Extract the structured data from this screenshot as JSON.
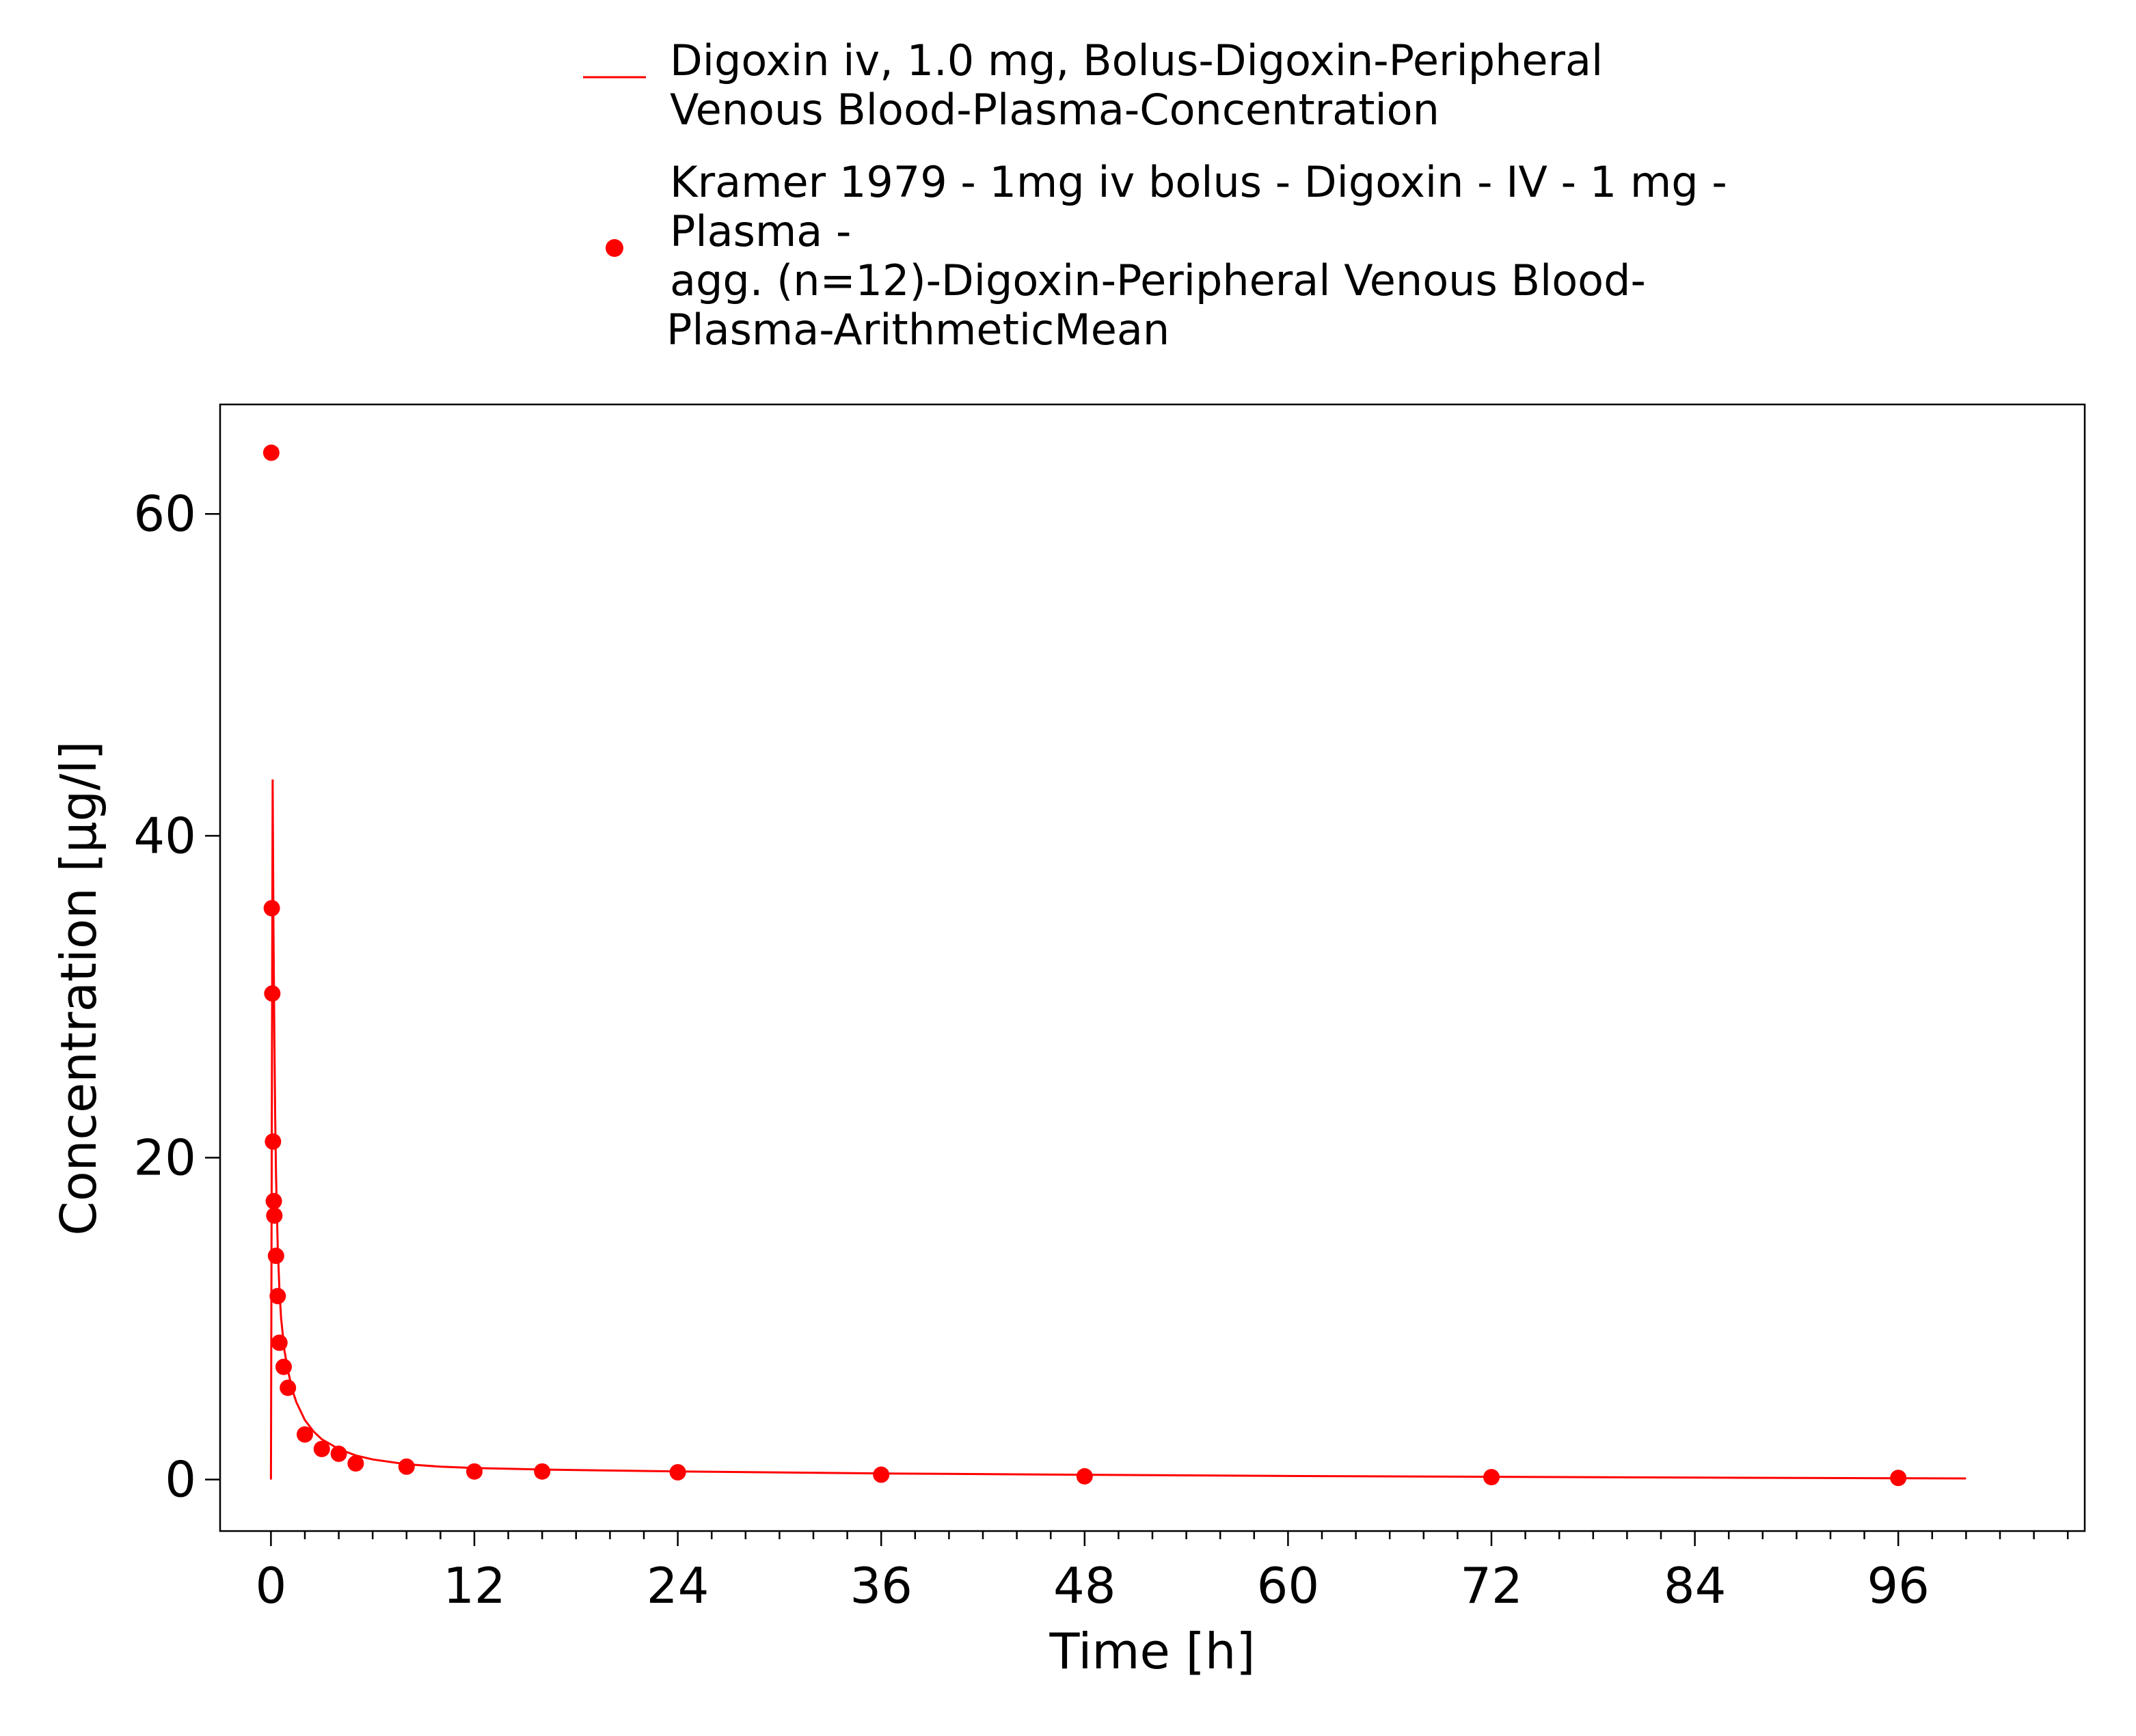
{
  "chart_data": {
    "type": "scatter",
    "xlabel": "Time [h]",
    "ylabel": "Concentration [µg/l]",
    "xlim": [
      -3,
      107
    ],
    "ylim": [
      -3.2,
      66.8
    ],
    "x_ticks": [
      0,
      12,
      24,
      36,
      48,
      60,
      72,
      84,
      96
    ],
    "x_minor_tick_step": 2,
    "y_ticks": [
      0,
      20,
      40,
      60
    ],
    "grid": false,
    "legend_position": "top-center, above plot",
    "series": [
      {
        "name_lines": [
          "Digoxin iv, 1.0 mg, Bolus-Digoxin-Peripheral",
          "Venous Blood-Plasma-Concentration"
        ],
        "type": "line",
        "color": "#ff0000",
        "x": [
          0,
          0.1,
          0.15,
          0.2,
          0.25,
          0.3,
          0.4,
          0.5,
          0.6,
          0.8,
          1,
          1.25,
          1.5,
          2,
          2.5,
          3,
          4,
          5,
          6,
          8,
          10,
          12,
          16,
          20,
          24,
          36,
          48,
          60,
          72,
          84,
          96,
          100
        ],
        "y": [
          0,
          43.5,
          34,
          27.5,
          22.5,
          19,
          14.5,
          11.8,
          10,
          8,
          6.8,
          5.6,
          4.8,
          3.7,
          3.0,
          2.5,
          1.9,
          1.5,
          1.25,
          0.95,
          0.8,
          0.72,
          0.62,
          0.56,
          0.5,
          0.38,
          0.3,
          0.22,
          0.17,
          0.12,
          0.08,
          0.07
        ]
      },
      {
        "name_lines": [
          "Kramer 1979 - 1mg iv bolus - Digoxin - IV - 1 mg -",
          "Plasma -",
          "agg. (n=12)-Digoxin-Peripheral Venous Blood-",
          "Plasma-ArithmeticMean"
        ],
        "type": "scatter",
        "color": "#ff0000",
        "x": [
          0.02,
          0.05,
          0.08,
          0.12,
          0.17,
          0.2,
          0.3,
          0.4,
          0.5,
          0.75,
          1,
          2,
          3,
          4,
          5,
          8,
          12,
          16,
          24,
          36,
          48,
          72,
          96
        ],
        "y": [
          63.8,
          35.5,
          30.2,
          21,
          17.3,
          16.4,
          13.9,
          11.4,
          8.5,
          7.0,
          5.7,
          2.8,
          1.9,
          1.6,
          1.0,
          0.8,
          0.5,
          0.5,
          0.45,
          0.3,
          0.2,
          0.15,
          0.1
        ]
      }
    ]
  }
}
